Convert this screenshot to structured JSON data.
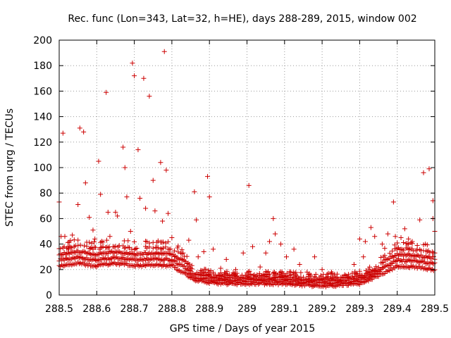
{
  "colors": {
    "marker": "#cc0000",
    "axis": "#000000",
    "grid": "#9a9a9a",
    "background": "#ffffff"
  },
  "chart_data": {
    "type": "scatter",
    "title": "Rec. func (Lon=343, Lat=32, h=HE), days 288-289, 2015, window 002",
    "xlabel": "GPS time / Days of year 2015",
    "ylabel": "STEC from uqrg / TECUs",
    "xlim": [
      288.5,
      289.5
    ],
    "ylim": [
      0,
      200
    ],
    "grid": true,
    "marker": "plus",
    "x_ticks": [
      288.5,
      288.6,
      288.7,
      288.8,
      288.9,
      289.0,
      289.1,
      289.2,
      289.3,
      289.4,
      289.5
    ],
    "x_tick_labels": [
      "288.5",
      "288.6",
      "288.7",
      "288.8",
      "288.9",
      "289",
      "289.1",
      "289.2",
      "289.3",
      "289.4",
      "289.5"
    ],
    "y_ticks": [
      0,
      20,
      40,
      60,
      80,
      100,
      120,
      140,
      160,
      180,
      200
    ],
    "y_tick_labels": [
      "0",
      "20",
      "40",
      "60",
      "80",
      "100",
      "120",
      "140",
      "160",
      "180",
      "200"
    ],
    "outliers": [
      [
        288.5,
        73
      ],
      [
        288.505,
        46
      ],
      [
        288.51,
        127
      ],
      [
        288.515,
        46
      ],
      [
        288.525,
        36
      ],
      [
        288.535,
        47
      ],
      [
        288.55,
        71
      ],
      [
        288.555,
        131
      ],
      [
        288.565,
        128
      ],
      [
        288.57,
        88
      ],
      [
        288.58,
        61
      ],
      [
        288.59,
        51
      ],
      [
        288.595,
        44
      ],
      [
        288.605,
        105
      ],
      [
        288.61,
        79
      ],
      [
        288.625,
        159
      ],
      [
        288.63,
        65
      ],
      [
        288.635,
        46
      ],
      [
        288.65,
        65
      ],
      [
        288.655,
        62
      ],
      [
        288.67,
        116
      ],
      [
        288.675,
        100
      ],
      [
        288.68,
        77
      ],
      [
        288.69,
        50
      ],
      [
        288.695,
        182
      ],
      [
        288.7,
        172
      ],
      [
        288.71,
        114
      ],
      [
        288.715,
        76
      ],
      [
        288.725,
        170
      ],
      [
        288.73,
        68
      ],
      [
        288.74,
        156
      ],
      [
        288.75,
        90
      ],
      [
        288.755,
        66
      ],
      [
        288.77,
        104
      ],
      [
        288.775,
        58
      ],
      [
        288.78,
        191
      ],
      [
        288.785,
        98
      ],
      [
        288.79,
        64
      ],
      [
        288.8,
        45
      ],
      [
        288.815,
        37
      ],
      [
        288.83,
        33
      ],
      [
        288.845,
        43
      ],
      [
        288.86,
        81
      ],
      [
        288.865,
        59
      ],
      [
        288.87,
        30
      ],
      [
        288.885,
        34
      ],
      [
        288.895,
        93
      ],
      [
        288.9,
        77
      ],
      [
        288.91,
        36
      ],
      [
        288.93,
        21
      ],
      [
        288.945,
        28
      ],
      [
        288.97,
        20
      ],
      [
        288.99,
        33
      ],
      [
        289.005,
        86
      ],
      [
        289.015,
        38
      ],
      [
        289.035,
        22
      ],
      [
        289.05,
        33
      ],
      [
        289.06,
        42
      ],
      [
        289.07,
        60
      ],
      [
        289.075,
        48
      ],
      [
        289.09,
        40
      ],
      [
        289.105,
        30
      ],
      [
        289.125,
        36
      ],
      [
        289.14,
        24
      ],
      [
        289.16,
        18
      ],
      [
        289.18,
        30
      ],
      [
        289.2,
        20
      ],
      [
        289.21,
        14
      ],
      [
        289.225,
        18
      ],
      [
        289.25,
        14
      ],
      [
        289.27,
        15
      ],
      [
        289.285,
        24
      ],
      [
        289.3,
        44
      ],
      [
        289.31,
        30
      ],
      [
        289.315,
        42
      ],
      [
        289.33,
        53
      ],
      [
        289.34,
        46
      ],
      [
        289.36,
        40
      ],
      [
        289.375,
        48
      ],
      [
        289.39,
        73
      ],
      [
        289.395,
        46
      ],
      [
        289.41,
        45
      ],
      [
        289.42,
        52
      ],
      [
        289.43,
        44
      ],
      [
        289.44,
        42
      ],
      [
        289.46,
        59
      ],
      [
        289.47,
        96
      ],
      [
        289.475,
        40
      ],
      [
        289.485,
        99
      ],
      [
        289.495,
        74
      ],
      [
        289.495,
        60
      ],
      [
        289.5,
        50
      ]
    ],
    "baseline": [
      [
        288.5,
        22
      ],
      [
        288.55,
        24
      ],
      [
        288.6,
        22
      ],
      [
        288.65,
        24
      ],
      [
        288.7,
        22
      ],
      [
        288.75,
        23
      ],
      [
        288.8,
        22
      ],
      [
        288.83,
        17
      ],
      [
        288.86,
        11
      ],
      [
        288.9,
        9
      ],
      [
        288.95,
        8
      ],
      [
        289.0,
        8
      ],
      [
        289.1,
        8
      ],
      [
        289.2,
        6
      ],
      [
        289.25,
        7
      ],
      [
        289.3,
        8
      ],
      [
        289.35,
        14
      ],
      [
        289.4,
        22
      ],
      [
        289.45,
        21
      ],
      [
        289.5,
        19
      ]
    ]
  }
}
